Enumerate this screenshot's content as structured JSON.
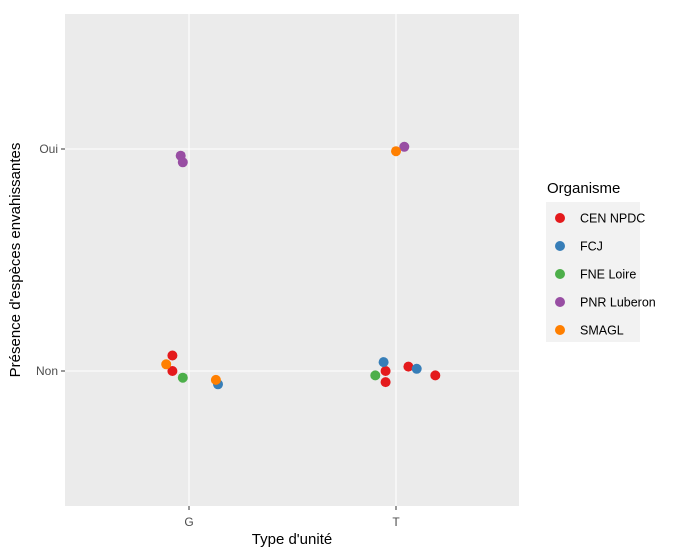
{
  "chart_data": {
    "type": "scatter",
    "xlabel": "Type d'unité",
    "ylabel": "Présence d'espèces envahissantes",
    "x_categories": [
      "G",
      "T"
    ],
    "y_categories": [
      "Non",
      "Oui"
    ],
    "grid": true,
    "legend": {
      "title": "Organisme",
      "placement": "right"
    },
    "series": [
      {
        "name": "CEN NPDC",
        "color": "#E41A1C",
        "points": [
          {
            "x": "G",
            "y": "Non",
            "jx": -0.08,
            "jy": 0.07
          },
          {
            "x": "G",
            "y": "Non",
            "jx": -0.08,
            "jy": 0.0
          },
          {
            "x": "T",
            "y": "Non",
            "jx": -0.05,
            "jy": 0.0
          },
          {
            "x": "T",
            "y": "Non",
            "jx": -0.05,
            "jy": -0.05
          },
          {
            "x": "T",
            "y": "Non",
            "jx": 0.06,
            "jy": 0.02
          },
          {
            "x": "T",
            "y": "Non",
            "jx": 0.19,
            "jy": -0.02
          }
        ]
      },
      {
        "name": "FCJ",
        "color": "#377EB8",
        "points": [
          {
            "x": "G",
            "y": "Non",
            "jx": 0.14,
            "jy": -0.06
          },
          {
            "x": "T",
            "y": "Non",
            "jx": -0.06,
            "jy": 0.04
          },
          {
            "x": "T",
            "y": "Non",
            "jx": 0.1,
            "jy": 0.01
          }
        ]
      },
      {
        "name": "FNE Loire",
        "color": "#4DAF4A",
        "points": [
          {
            "x": "G",
            "y": "Non",
            "jx": -0.03,
            "jy": -0.03
          },
          {
            "x": "T",
            "y": "Non",
            "jx": -0.1,
            "jy": -0.02
          }
        ]
      },
      {
        "name": "PNR Luberon",
        "color": "#984EA3",
        "points": [
          {
            "x": "G",
            "y": "Oui",
            "jx": -0.04,
            "jy": -0.03
          },
          {
            "x": "G",
            "y": "Oui",
            "jx": -0.03,
            "jy": -0.06
          },
          {
            "x": "T",
            "y": "Oui",
            "jx": 0.04,
            "jy": 0.01
          }
        ]
      },
      {
        "name": "SMAGL",
        "color": "#FF7F00",
        "points": [
          {
            "x": "G",
            "y": "Non",
            "jx": -0.11,
            "jy": 0.03
          },
          {
            "x": "G",
            "y": "Non",
            "jx": 0.13,
            "jy": -0.04
          },
          {
            "x": "T",
            "y": "Oui",
            "jx": 0.0,
            "jy": -0.01
          }
        ]
      }
    ]
  }
}
